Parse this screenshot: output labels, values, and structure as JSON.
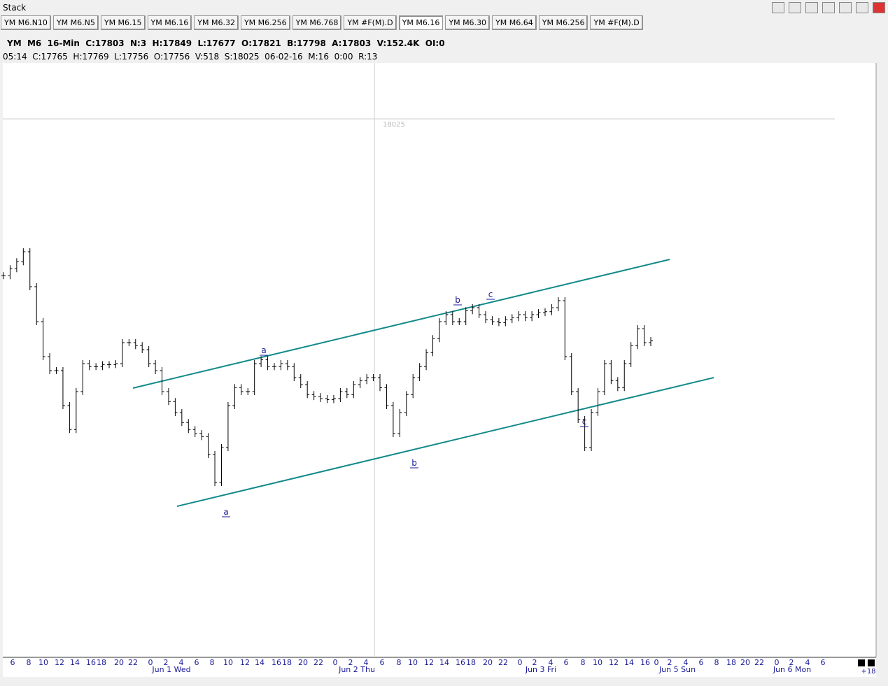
{
  "window": {
    "title": "Stack"
  },
  "tabs": [
    "YM M6.N10",
    "YM M6.N5",
    "YM M6.15",
    "YM M6.16",
    "YM M6.32",
    "YM M6.256",
    "YM M6.768",
    "YM #F(M).D",
    "YM M6.16",
    "YM M6.30",
    "YM M6.64",
    "YM M6.256",
    "YM #F(M).D"
  ],
  "active_tab": 8,
  "info": {
    "line1": "YM  M6  16-Min  C:17803  N:3  H:17849  L:17677  O:17821  B:17798  A:17803  V:152.4K  OI:0",
    "line2": "05:14  C:17765  H:17769  L:17756  O:17756  V:518  S:18025  06-02-16  M:16  0:00  R:13"
  },
  "chart": {
    "type": "bar",
    "values": [
      17868,
      17875,
      17882,
      17892,
      17857,
      17822,
      17787,
      17773,
      17773,
      17738,
      17714,
      17752,
      17780,
      17777,
      17777,
      17779,
      17779,
      17780,
      17801,
      17801,
      17798,
      17794,
      17780,
      17773,
      17752,
      17742,
      17731,
      17721,
      17714,
      17710,
      17707,
      17689,
      17661,
      17696,
      17738,
      17756,
      17752,
      17752,
      17780,
      17784,
      17777,
      17777,
      17780,
      17777,
      17766,
      17759,
      17749,
      17747,
      17745,
      17744,
      17745,
      17752,
      17749,
      17759,
      17763,
      17766,
      17766,
      17756,
      17738,
      17710,
      17731,
      17749,
      17766,
      17777,
      17791,
      17805,
      17822,
      17829,
      17822,
      17822,
      17833,
      17836,
      17829,
      17824,
      17822,
      17821,
      17824,
      17826,
      17829,
      17826,
      17829,
      17831,
      17832,
      17836,
      17843,
      17787,
      17752,
      17724,
      17696,
      17731,
      17752,
      17780,
      17763,
      17756,
      17780,
      17798,
      17815,
      17801,
      17803
    ],
    "ylim": [
      17486,
      18081
    ],
    "color": "#000000",
    "crosshair": 18025,
    "wave_labels": [
      "a",
      "a",
      "b",
      "b",
      "c",
      "c"
    ],
    "x_labels": [
      "6",
      "8",
      "10",
      "12",
      "14",
      "16",
      "18",
      "20",
      "22",
      "0",
      "2",
      "4",
      "6",
      "8",
      "10",
      "12",
      "14",
      "16",
      "18",
      "20",
      "22",
      "0",
      "2",
      "4",
      "6",
      "8",
      "10",
      "12",
      "14",
      "16",
      "18",
      "20",
      "22",
      "0",
      "2",
      "4",
      "6",
      "8",
      "10",
      "12",
      "14",
      "16",
      "0",
      "2",
      "4",
      "6",
      "8",
      "18",
      "20",
      "22",
      "0",
      "2",
      "4",
      "6"
    ],
    "date_labels": [
      "Jun 1 Wed",
      "Jun 2 Thu",
      "Jun 3 Fri",
      "Jun 5 Sun",
      "Jun 6 Mon"
    ],
    "corner_label": "+18"
  }
}
